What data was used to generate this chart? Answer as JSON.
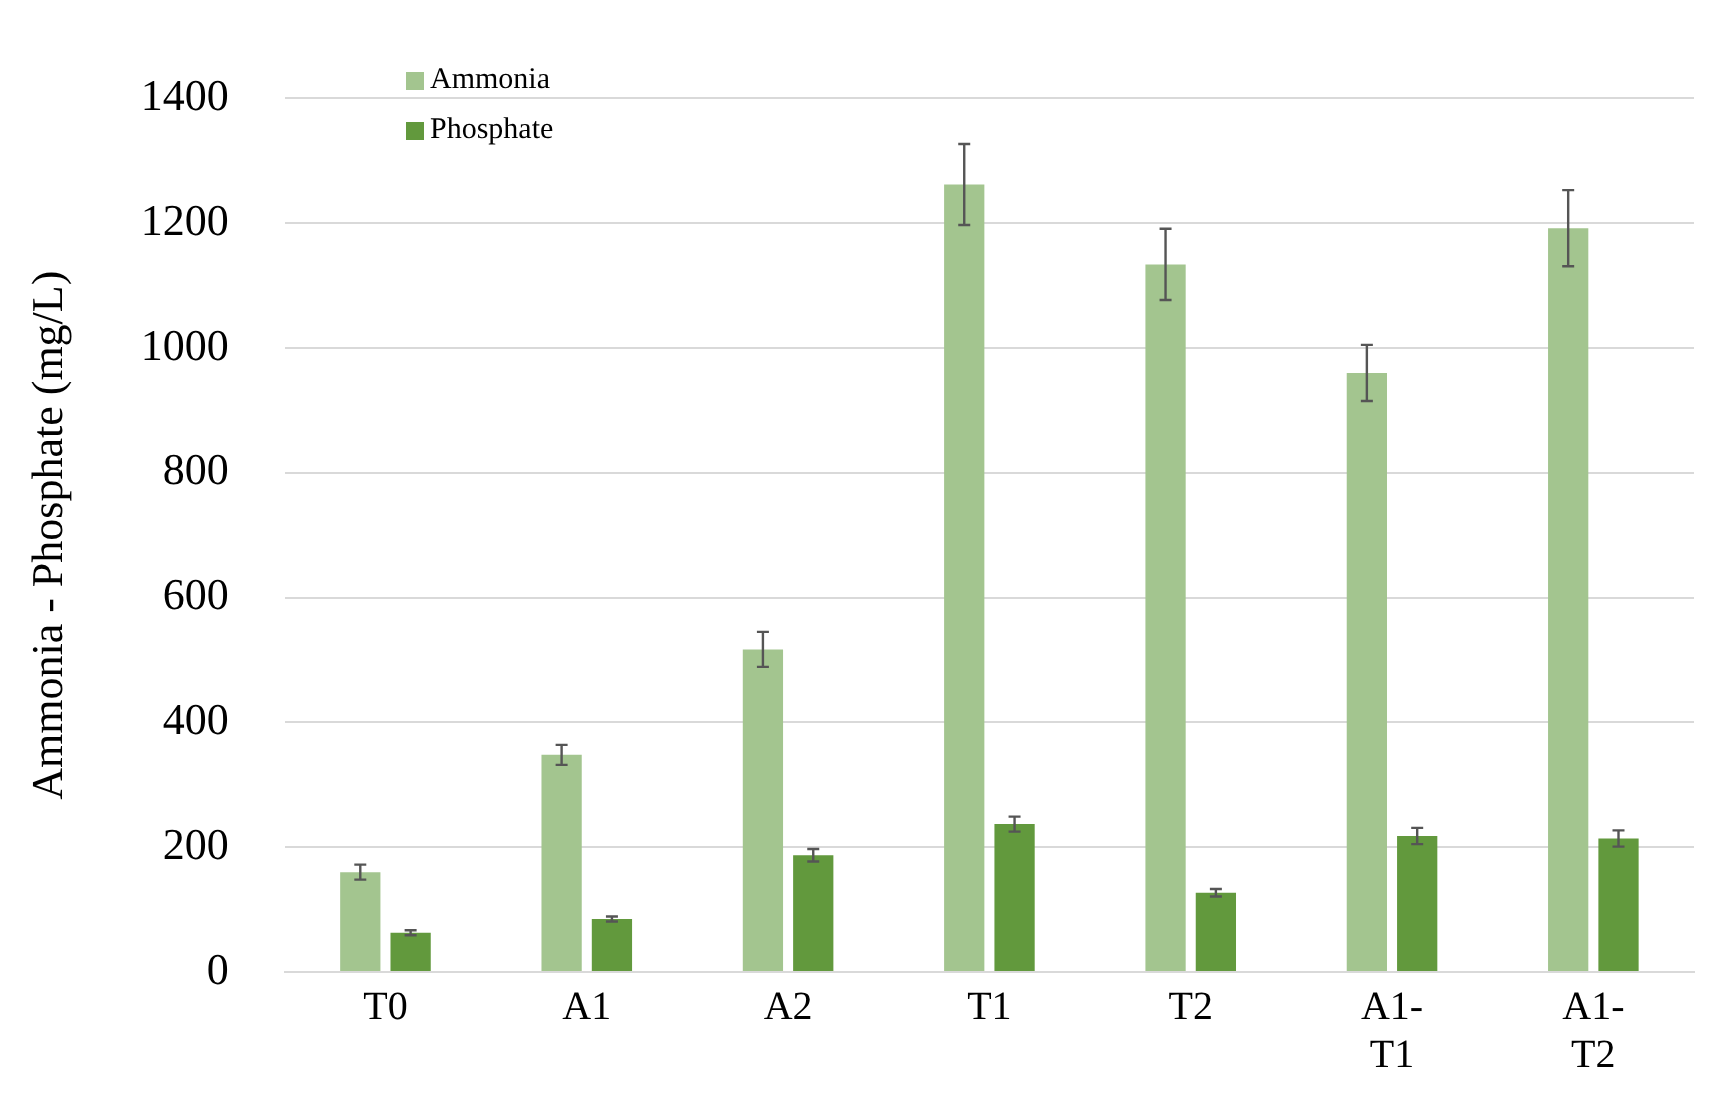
{
  "chart_data": {
    "type": "bar",
    "ylabel": "Ammonia - Phosphate (mg/L)",
    "categories": [
      "T0",
      "A1",
      "A2",
      "T1",
      "T2",
      "A1-T1",
      "A1-T2"
    ],
    "series": [
      {
        "name": "Ammonia",
        "color": "#a3c58f",
        "values": [
          160,
          348,
          517,
          1262,
          1134,
          960,
          1192
        ],
        "errors": [
          12,
          16,
          28,
          65,
          57,
          45,
          61
        ]
      },
      {
        "name": "Phosphate",
        "color": "#62993d",
        "values": [
          63,
          85,
          187,
          237,
          127,
          218,
          214
        ],
        "errors": [
          4,
          4,
          10,
          12,
          6,
          13,
          13
        ]
      }
    ],
    "ylim": [
      0,
      1400
    ],
    "yticks": [
      0,
      200,
      400,
      600,
      800,
      1000,
      1200,
      1400
    ],
    "grid": "y",
    "legend": "top left"
  }
}
